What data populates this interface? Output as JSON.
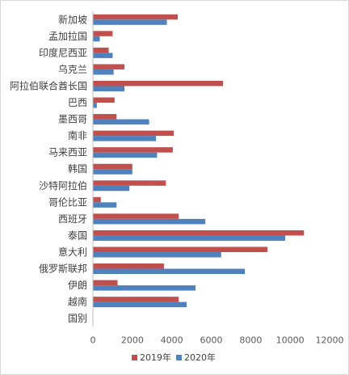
{
  "chart_data": {
    "type": "bar",
    "orientation": "horizontal",
    "categories": [
      "新加坡",
      "孟加拉国",
      "印度尼西亚",
      "乌克兰",
      "阿拉伯联合酋长国",
      "巴西",
      "墨西哥",
      "南非",
      "马来西亚",
      "韩国",
      "沙特阿拉伯",
      "哥伦比亚",
      "西班牙",
      "泰国",
      "意大利",
      "俄罗斯联邦",
      "伊朗",
      "越南",
      "国别"
    ],
    "series": [
      {
        "name": "2019年",
        "color": "#c0504d",
        "values": [
          4300,
          1000,
          800,
          1600,
          6600,
          1100,
          1200,
          4100,
          4050,
          2000,
          3700,
          400,
          4350,
          10700,
          8850,
          3600,
          1250,
          4350,
          null
        ]
      },
      {
        "name": "2020年",
        "color": "#4f81bd",
        "values": [
          3750,
          350,
          1000,
          1050,
          1600,
          200,
          2850,
          3200,
          3250,
          2000,
          1850,
          1200,
          5700,
          9750,
          6500,
          7700,
          5200,
          4750,
          null
        ]
      }
    ],
    "xlim": [
      0,
      12000
    ],
    "xticks": [
      0,
      2000,
      4000,
      6000,
      8000,
      10000,
      12000
    ],
    "legend": "bottom",
    "grid": false
  }
}
